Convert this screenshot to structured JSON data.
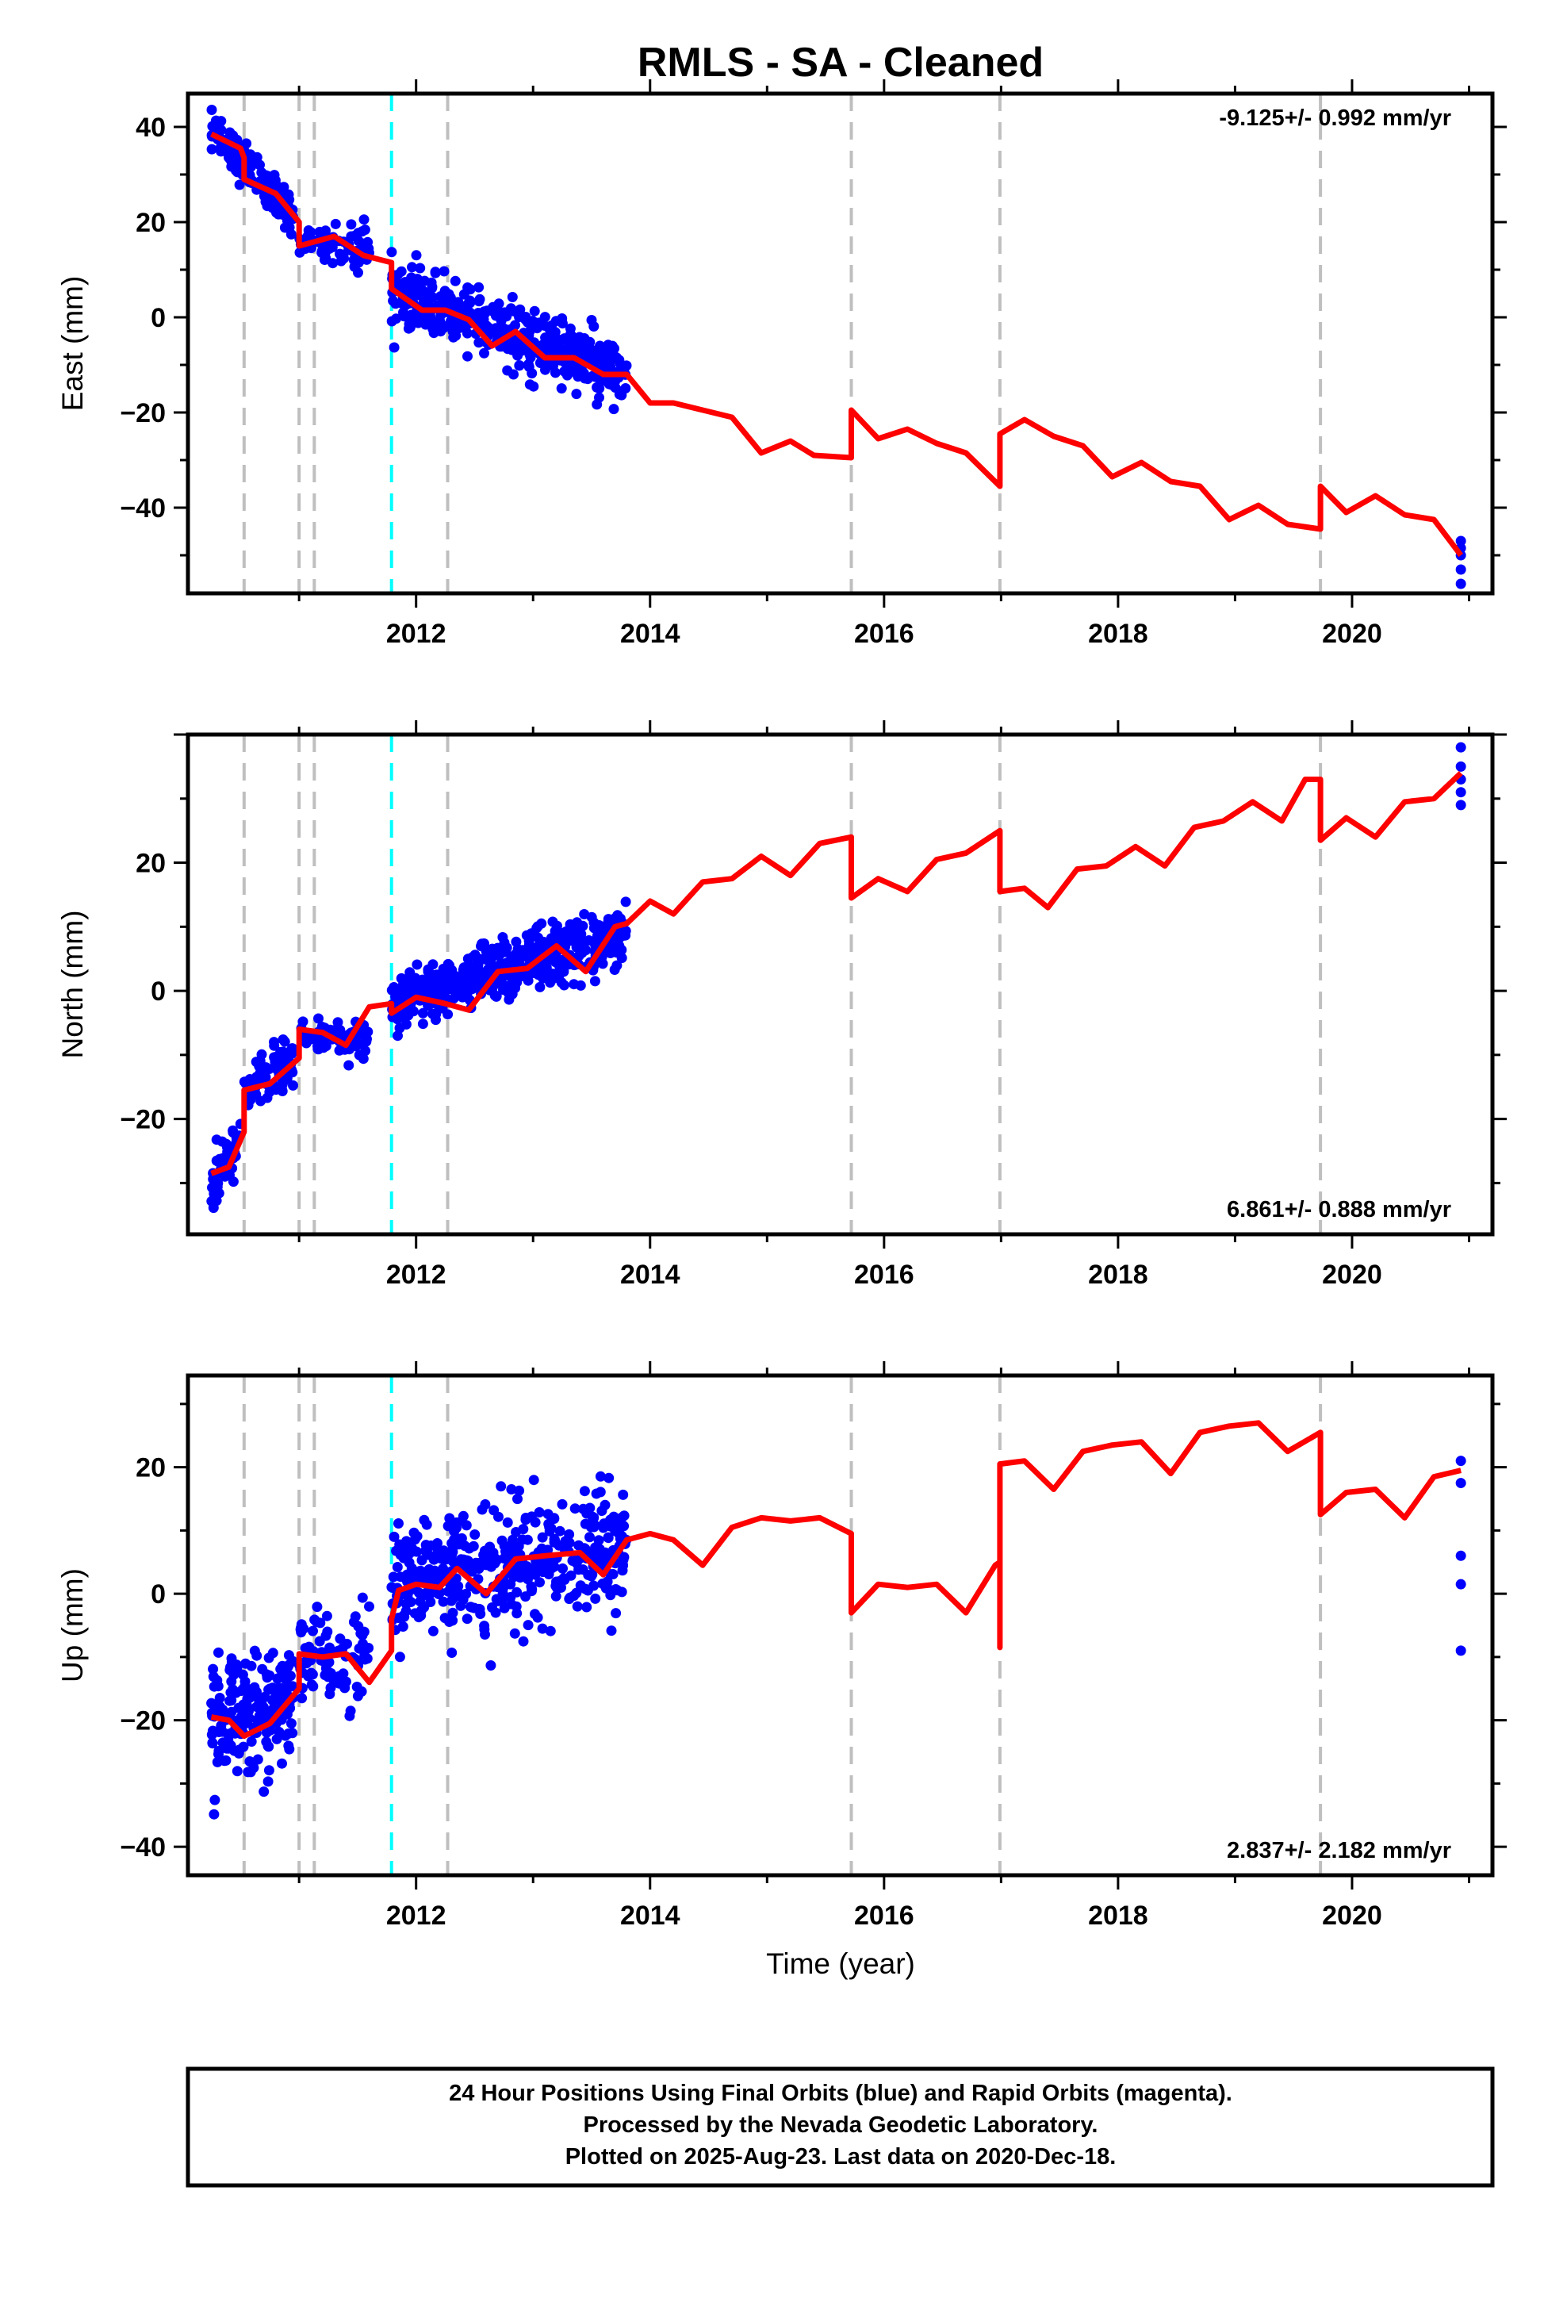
{
  "title": "RMLS  - SA - Cleaned",
  "xlabel": "Time (year)",
  "colors": {
    "final_orbits": "#0000ff",
    "model": "#ff0000",
    "event_line": "#bfbfbf",
    "antenna_change": "#00ffff"
  },
  "footer": {
    "line1": "24 Hour Positions Using Final Orbits (blue) and Rapid Orbits (magenta).",
    "line2": "Processed by the Nevada Geodetic Laboratory.",
    "line3": "Plotted on 2025-Aug-23. Last data on 2020-Dec-18."
  },
  "chart_data": [
    {
      "type": "scatter",
      "name": "east",
      "ylabel": "East (mm)",
      "rate_text": "-9.125+/- 0.992 mm/yr",
      "rate_position": "top-right",
      "xlim": [
        2010.05,
        2021.2
      ],
      "ylim": [
        -58,
        47
      ],
      "xticks": [
        2012,
        2014,
        2016,
        2018,
        2020
      ],
      "yticks": [
        -40,
        -20,
        0,
        20,
        40
      ],
      "event_lines": [
        2010.53,
        2011.0,
        2011.13,
        2012.27,
        2015.72,
        2016.99,
        2019.73
      ],
      "antenna_lines": [
        2011.79
      ],
      "scatter_segments": [
        {
          "x0": 2010.25,
          "x1": 2010.95,
          "y0": 39,
          "y1": 22,
          "sd": 2.2,
          "n": 140
        },
        {
          "x0": 2011.0,
          "x1": 2011.6,
          "y0": 17,
          "y1": 14,
          "sd": 2.2,
          "n": 80
        },
        {
          "x0": 2011.79,
          "x1": 2013.8,
          "y0": 5,
          "y1": -12,
          "sd": 3.2,
          "n": 450
        }
      ],
      "tail_points": [
        [
          2020.93,
          -47
        ],
        [
          2020.93,
          -48.5
        ],
        [
          2020.93,
          -50
        ],
        [
          2020.93,
          -53
        ],
        [
          2020.93,
          -56
        ]
      ],
      "model": [
        [
          2010.25,
          38.5
        ],
        [
          2010.5,
          35.5
        ],
        [
          2010.53,
          33.5
        ],
        [
          2010.53,
          29
        ],
        [
          2010.8,
          26
        ],
        [
          2011.0,
          20
        ],
        [
          2011.0,
          15
        ],
        [
          2011.3,
          17
        ],
        [
          2011.55,
          13
        ],
        [
          2011.79,
          11.5
        ],
        [
          2011.79,
          6
        ],
        [
          2012.05,
          1.5
        ],
        [
          2012.25,
          1.5
        ],
        [
          2012.45,
          -0.5
        ],
        [
          2012.65,
          -6
        ],
        [
          2012.85,
          -3
        ],
        [
          2013.1,
          -8.5
        ],
        [
          2013.35,
          -8.5
        ],
        [
          2013.6,
          -12
        ],
        [
          2013.8,
          -12
        ],
        [
          2014.0,
          -18
        ],
        [
          2014.2,
          -18
        ],
        [
          2014.45,
          -19.5
        ],
        [
          2014.7,
          -21
        ],
        [
          2014.95,
          -28.5
        ],
        [
          2015.2,
          -26
        ],
        [
          2015.4,
          -29
        ],
        [
          2015.72,
          -29.5
        ],
        [
          2015.72,
          -19.5
        ],
        [
          2015.95,
          -25.5
        ],
        [
          2016.2,
          -23.5
        ],
        [
          2016.45,
          -26.5
        ],
        [
          2016.7,
          -28.5
        ],
        [
          2016.99,
          -35.5
        ],
        [
          2016.99,
          -24.5
        ],
        [
          2017.2,
          -21.5
        ],
        [
          2017.45,
          -25
        ],
        [
          2017.7,
          -27
        ],
        [
          2017.95,
          -33.5
        ],
        [
          2018.2,
          -30.5
        ],
        [
          2018.45,
          -34.5
        ],
        [
          2018.7,
          -35.5
        ],
        [
          2018.95,
          -42.5
        ],
        [
          2019.2,
          -39.5
        ],
        [
          2019.45,
          -43.5
        ],
        [
          2019.73,
          -44.5
        ],
        [
          2019.73,
          -35.5
        ],
        [
          2019.95,
          -41
        ],
        [
          2020.2,
          -37.5
        ],
        [
          2020.45,
          -41.5
        ],
        [
          2020.7,
          -42.5
        ],
        [
          2020.93,
          -50
        ]
      ]
    },
    {
      "type": "scatter",
      "name": "north",
      "ylabel": "North (mm)",
      "rate_text": "6.861+/- 0.888 mm/yr",
      "rate_position": "bottom-right",
      "xlim": [
        2010.05,
        2021.2
      ],
      "ylim": [
        -38,
        40
      ],
      "xticks": [
        2012,
        2014,
        2016,
        2018,
        2020
      ],
      "yticks": [
        -20,
        0,
        20
      ],
      "event_lines": [
        2010.53,
        2011.0,
        2011.13,
        2012.27,
        2015.72,
        2016.99,
        2019.73
      ],
      "antenna_lines": [
        2011.79
      ],
      "scatter_segments": [
        {
          "x0": 2010.25,
          "x1": 2010.5,
          "y0": -31,
          "y1": -23,
          "sd": 2.0,
          "n": 60
        },
        {
          "x0": 2010.53,
          "x1": 2010.95,
          "y0": -15,
          "y1": -11,
          "sd": 1.8,
          "n": 90
        },
        {
          "x0": 2011.0,
          "x1": 2011.6,
          "y0": -7,
          "y1": -7.5,
          "sd": 1.5,
          "n": 80
        },
        {
          "x0": 2011.79,
          "x1": 2013.8,
          "y0": -2,
          "y1": 9,
          "sd": 2.3,
          "n": 450
        }
      ],
      "tail_points": [
        [
          2020.93,
          38
        ],
        [
          2020.93,
          35
        ],
        [
          2020.93,
          33
        ],
        [
          2020.93,
          31
        ],
        [
          2020.93,
          29
        ]
      ],
      "model": [
        [
          2010.25,
          -28.5
        ],
        [
          2010.4,
          -27.5
        ],
        [
          2010.53,
          -22
        ],
        [
          2010.53,
          -15.5
        ],
        [
          2010.75,
          -14.5
        ],
        [
          2011.0,
          -10.5
        ],
        [
          2011.0,
          -6
        ],
        [
          2011.2,
          -6.5
        ],
        [
          2011.4,
          -8.5
        ],
        [
          2011.6,
          -2.5
        ],
        [
          2011.79,
          -2
        ],
        [
          2011.79,
          -3.5
        ],
        [
          2012.0,
          -1
        ],
        [
          2012.25,
          -2
        ],
        [
          2012.45,
          -3
        ],
        [
          2012.7,
          3
        ],
        [
          2012.95,
          3.5
        ],
        [
          2013.2,
          7
        ],
        [
          2013.45,
          3
        ],
        [
          2013.7,
          10
        ],
        [
          2013.8,
          10.5
        ],
        [
          2014.0,
          14
        ],
        [
          2014.2,
          12
        ],
        [
          2014.45,
          17
        ],
        [
          2014.7,
          17.5
        ],
        [
          2014.95,
          21
        ],
        [
          2015.2,
          18
        ],
        [
          2015.45,
          23
        ],
        [
          2015.72,
          24
        ],
        [
          2015.72,
          14.5
        ],
        [
          2015.95,
          17.5
        ],
        [
          2016.2,
          15.5
        ],
        [
          2016.45,
          20.5
        ],
        [
          2016.7,
          21.5
        ],
        [
          2016.99,
          25
        ],
        [
          2016.99,
          15.5
        ],
        [
          2017.2,
          16
        ],
        [
          2017.4,
          13
        ],
        [
          2017.65,
          19
        ],
        [
          2017.9,
          19.5
        ],
        [
          2018.15,
          22.5
        ],
        [
          2018.4,
          19.5
        ],
        [
          2018.65,
          25.5
        ],
        [
          2018.9,
          26.5
        ],
        [
          2019.15,
          29.5
        ],
        [
          2019.4,
          26.5
        ],
        [
          2019.6,
          33
        ],
        [
          2019.73,
          33
        ],
        [
          2019.73,
          23.5
        ],
        [
          2019.95,
          27
        ],
        [
          2020.2,
          24
        ],
        [
          2020.45,
          29.5
        ],
        [
          2020.7,
          30
        ],
        [
          2020.93,
          34
        ]
      ]
    },
    {
      "type": "scatter",
      "name": "up",
      "ylabel": "Up (mm)",
      "rate_text": "2.837+/- 2.182 mm/yr",
      "rate_position": "bottom-right",
      "xlim": [
        2010.05,
        2021.2
      ],
      "ylim": [
        -44.5,
        34.5
      ],
      "xticks": [
        2012,
        2014,
        2016,
        2018,
        2020
      ],
      "yticks": [
        -40,
        -20,
        0,
        20
      ],
      "event_lines": [
        2010.53,
        2011.0,
        2011.13,
        2012.27,
        2015.72,
        2016.99,
        2019.73
      ],
      "antenna_lines": [
        2011.79
      ],
      "scatter_segments": [
        {
          "x0": 2010.25,
          "x1": 2010.95,
          "y0": -20,
          "y1": -17,
          "sd": 4.5,
          "n": 200
        },
        {
          "x0": 2011.0,
          "x1": 2011.6,
          "y0": -10,
          "y1": -10,
          "sd": 4.0,
          "n": 80
        },
        {
          "x0": 2011.79,
          "x1": 2013.8,
          "y0": 2,
          "y1": 6,
          "sd": 5.0,
          "n": 450
        }
      ],
      "tail_points": [
        [
          2020.93,
          21
        ],
        [
          2020.93,
          17.5
        ],
        [
          2020.93,
          6
        ],
        [
          2020.93,
          1.5
        ],
        [
          2020.93,
          -9
        ]
      ],
      "model": [
        [
          2010.25,
          -19.5
        ],
        [
          2010.4,
          -20
        ],
        [
          2010.53,
          -22.5
        ],
        [
          2010.75,
          -20.5
        ],
        [
          2011.0,
          -15
        ],
        [
          2011.0,
          -9.5
        ],
        [
          2011.2,
          -10
        ],
        [
          2011.4,
          -9.5
        ],
        [
          2011.6,
          -14
        ],
        [
          2011.79,
          -9
        ],
        [
          2011.79,
          -4
        ],
        [
          2011.85,
          0.5
        ],
        [
          2012.0,
          1.5
        ],
        [
          2012.2,
          1
        ],
        [
          2012.35,
          4
        ],
        [
          2012.6,
          0
        ],
        [
          2012.85,
          5.5
        ],
        [
          2013.1,
          6
        ],
        [
          2013.4,
          6.5
        ],
        [
          2013.6,
          3
        ],
        [
          2013.8,
          8.5
        ],
        [
          2014.0,
          9.5
        ],
        [
          2014.2,
          8.5
        ],
        [
          2014.45,
          4.5
        ],
        [
          2014.7,
          10.5
        ],
        [
          2014.95,
          12
        ],
        [
          2015.2,
          11.5
        ],
        [
          2015.45,
          12
        ],
        [
          2015.72,
          9.5
        ],
        [
          2015.72,
          -3
        ],
        [
          2015.95,
          1.5
        ],
        [
          2016.2,
          1
        ],
        [
          2016.45,
          1.5
        ],
        [
          2016.7,
          -3
        ],
        [
          2016.95,
          4.5
        ],
        [
          2016.99,
          5
        ],
        [
          2016.99,
          -8.5
        ],
        [
          2016.99,
          20.5
        ],
        [
          2017.2,
          21
        ],
        [
          2017.45,
          16.5
        ],
        [
          2017.7,
          22.5
        ],
        [
          2017.95,
          23.5
        ],
        [
          2018.2,
          24
        ],
        [
          2018.45,
          19
        ],
        [
          2018.7,
          25.5
        ],
        [
          2018.95,
          26.5
        ],
        [
          2019.2,
          27
        ],
        [
          2019.45,
          22.5
        ],
        [
          2019.73,
          25.5
        ],
        [
          2019.73,
          12.5
        ],
        [
          2019.95,
          16
        ],
        [
          2020.2,
          16.5
        ],
        [
          2020.45,
          12
        ],
        [
          2020.7,
          18.5
        ],
        [
          2020.93,
          19.5
        ]
      ]
    }
  ]
}
